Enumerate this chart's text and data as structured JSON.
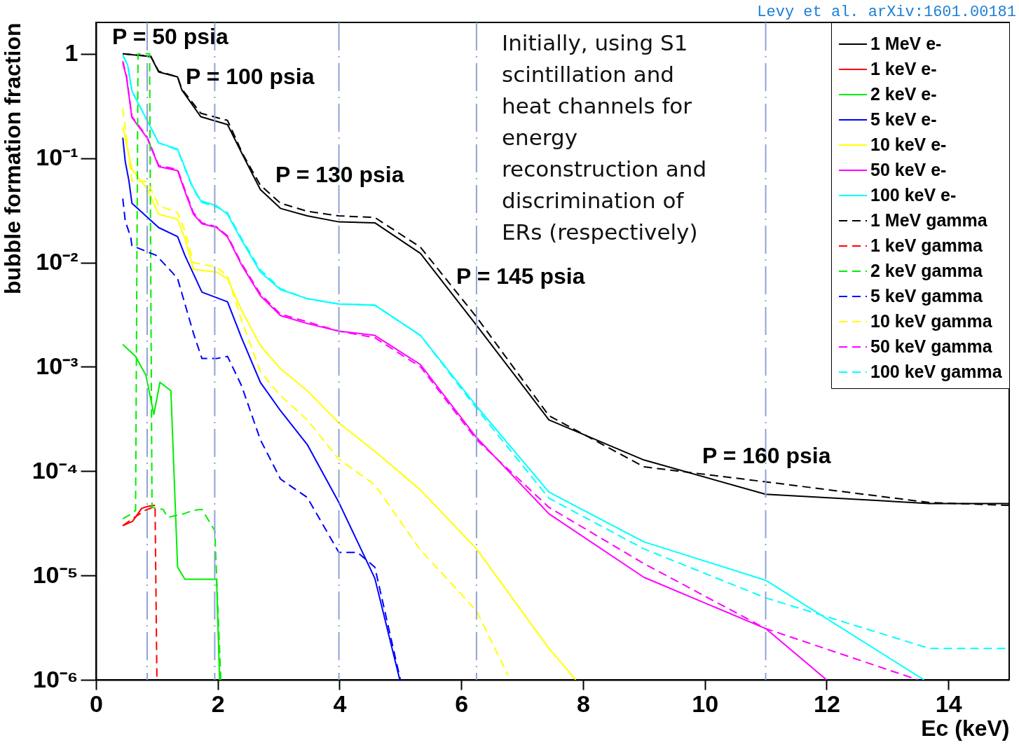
{
  "chart_data": {
    "type": "line",
    "xlabel": "Ec (keV)",
    "ylabel": "bubble formation fraction",
    "log": "y",
    "xlim": [
      0,
      15
    ],
    "xticks": [
      0,
      2,
      4,
      6,
      8,
      10,
      12,
      14
    ],
    "ylim": [
      1e-06,
      2
    ],
    "yticks": [
      {
        "value": 1e-06,
        "label": "10⁻⁶"
      },
      {
        "value": 1e-05,
        "label": "10⁻⁵"
      },
      {
        "value": 0.0001,
        "label": "10⁻⁴"
      },
      {
        "value": 0.001,
        "label": "10⁻³"
      },
      {
        "value": 0.01,
        "label": "10⁻²"
      },
      {
        "value": 0.1,
        "label": "10⁻¹"
      },
      {
        "value": 1,
        "label": "1"
      }
    ],
    "legend": "top right",
    "series": [
      {
        "name": "1 MeV e-",
        "color": "#000000",
        "line_style": "solid",
        "x": [
          0.44,
          0.9,
          1.03,
          1.34,
          1.41,
          1.72,
          2.16,
          2.41,
          2.7,
          3.03,
          3.47,
          3.99,
          4.58,
          5.33,
          6.25,
          7.44,
          9.0,
          11.0,
          13.69,
          15.0
        ],
        "values": [
          1.0,
          0.94,
          0.67,
          0.6,
          0.45,
          0.25,
          0.21,
          0.107,
          0.05,
          0.033,
          0.028,
          0.0245,
          0.024,
          0.0122,
          0.0025,
          0.00031,
          0.000128,
          6e-05,
          4.9e-05,
          4.9e-05
        ]
      },
      {
        "name": "1 keV e-",
        "color": "#ff0000",
        "line_style": "solid",
        "x": [
          0.44,
          0.6,
          0.75,
          0.85,
          0.97
        ],
        "values": [
          3e-05,
          3.3e-05,
          4.4e-05,
          4.6e-05,
          4.7e-05
        ]
      },
      {
        "name": "2 keV e-",
        "color": "#00ee00",
        "line_style": "solid",
        "x": [
          0.44,
          0.65,
          0.82,
          0.95,
          1.05,
          1.23,
          1.34,
          1.46,
          1.59,
          1.74,
          1.98,
          2.03
        ],
        "values": [
          0.00164,
          0.00126,
          0.00083,
          0.00035,
          0.00071,
          0.00059,
          1.2e-05,
          9.2e-06,
          9.2e-06,
          9.2e-06,
          9.2e-06,
          1e-06
        ]
      },
      {
        "name": "5 keV e-",
        "color": "#0000ff",
        "line_style": "solid",
        "x": [
          0.44,
          0.48,
          0.54,
          0.59,
          1.03,
          1.34,
          1.46,
          1.74,
          2.16,
          2.39,
          2.7,
          3.03,
          3.47,
          3.99,
          4.58,
          4.99
        ],
        "values": [
          0.157,
          0.093,
          0.061,
          0.037,
          0.0216,
          0.0177,
          0.0117,
          0.0052,
          0.0042,
          0.0019,
          0.00071,
          0.00038,
          0.00018,
          5e-05,
          9.4e-06,
          1e-06
        ]
      },
      {
        "name": "10 keV e-",
        "color": "#ffff00",
        "line_style": "solid",
        "x": [
          0.44,
          0.59,
          0.84,
          1.03,
          1.34,
          1.46,
          1.6,
          1.98,
          2.16,
          2.39,
          2.7,
          3.03,
          3.47,
          3.99,
          4.58,
          5.33,
          6.25,
          7.44,
          7.88
        ],
        "values": [
          0.2,
          0.078,
          0.051,
          0.029,
          0.026,
          0.017,
          0.0086,
          0.0081,
          0.007,
          0.0035,
          0.0016,
          0.00096,
          0.00059,
          0.00029,
          0.000155,
          6.6e-05,
          1.8e-05,
          2e-06,
          1e-06
        ]
      },
      {
        "name": "50 keV e-",
        "color": "#ff00ff",
        "line_style": "solid",
        "x": [
          0.44,
          0.5,
          0.59,
          0.84,
          1.03,
          1.34,
          1.46,
          1.6,
          1.74,
          1.98,
          2.16,
          2.39,
          2.7,
          3.03,
          3.47,
          3.99,
          4.58,
          5.33,
          6.25,
          7.44,
          9.0,
          11.0,
          12.0
        ],
        "values": [
          0.82,
          0.6,
          0.245,
          0.156,
          0.083,
          0.076,
          0.048,
          0.029,
          0.0235,
          0.0217,
          0.0176,
          0.0095,
          0.0048,
          0.0031,
          0.0026,
          0.0022,
          0.002,
          0.00105,
          0.00021,
          3.9e-05,
          9.6e-06,
          3.1e-06,
          1e-06
        ]
      },
      {
        "name": "100 keV e-",
        "color": "#00ffff",
        "line_style": "solid",
        "x": [
          0.44,
          0.52,
          0.59,
          1.03,
          1.34,
          1.57,
          1.72,
          1.98,
          2.16,
          2.39,
          2.7,
          3.03,
          3.47,
          3.99,
          4.58,
          5.33,
          6.25,
          7.44,
          9.0,
          11.0,
          13.6
        ],
        "values": [
          0.97,
          0.78,
          0.44,
          0.14,
          0.122,
          0.056,
          0.039,
          0.035,
          0.029,
          0.0164,
          0.0081,
          0.0055,
          0.0045,
          0.004,
          0.0039,
          0.002,
          0.00042,
          6.3e-05,
          2.1e-05,
          9e-06,
          1e-06
        ]
      },
      {
        "name": "1 MeV gamma",
        "color": "#000000",
        "line_style": "dashed",
        "x": [
          0.44,
          0.9,
          1.03,
          1.34,
          1.41,
          1.72,
          2.16,
          2.41,
          2.7,
          3.03,
          3.47,
          3.99,
          4.58,
          5.33,
          6.25,
          7.44,
          9.0,
          11.0,
          13.69,
          15.0
        ],
        "values": [
          1.0,
          0.95,
          0.68,
          0.6,
          0.46,
          0.27,
          0.23,
          0.11,
          0.055,
          0.037,
          0.031,
          0.028,
          0.027,
          0.014,
          0.003,
          0.00034,
          0.00011,
          7.9e-05,
          5e-05,
          4.7e-05
        ]
      },
      {
        "name": "1 keV gamma",
        "color": "#ff0000",
        "line_style": "dashed",
        "x": [
          0.44,
          0.6,
          0.8,
          0.97,
          1.0
        ],
        "values": [
          3e-05,
          3.5e-05,
          4.2e-05,
          4.6e-05,
          1e-06
        ]
      },
      {
        "name": "2 keV gamma",
        "color": "#00ee00",
        "line_style": "dashed",
        "x": [
          0.44,
          0.55,
          0.65,
          0.69,
          0.88,
          0.92,
          1.1,
          1.18,
          1.34,
          1.44,
          1.59,
          1.74,
          1.95,
          2.05
        ],
        "values": [
          3.5e-05,
          3.8e-05,
          4.2e-05,
          1.0,
          1.0,
          4.5e-05,
          4.3e-05,
          3.6e-05,
          3.8e-05,
          3.9e-05,
          4.2e-05,
          4.3e-05,
          2.7e-05,
          1e-06
        ]
      },
      {
        "name": "5 keV gamma",
        "color": "#0000ff",
        "line_style": "dashed",
        "x": [
          0.44,
          0.48,
          0.57,
          0.59,
          0.99,
          1.23,
          1.34,
          1.6,
          1.74,
          1.98,
          2.16,
          2.39,
          2.7,
          3.03,
          3.47,
          3.99,
          4.3,
          4.58,
          5.0
        ],
        "values": [
          0.041,
          0.025,
          0.0175,
          0.0145,
          0.0117,
          0.0083,
          0.007,
          0.0021,
          0.0012,
          0.0012,
          0.00126,
          0.00066,
          0.0002,
          8.4e-05,
          5.6e-05,
          1.66e-05,
          1.66e-05,
          1.2e-05,
          1e-06
        ]
      },
      {
        "name": "10 keV gamma",
        "color": "#ffff00",
        "line_style": "dashed",
        "x": [
          0.44,
          0.59,
          0.84,
          1.03,
          1.34,
          1.46,
          1.6,
          1.98,
          2.16,
          2.39,
          2.7,
          3.03,
          3.47,
          3.99,
          4.58,
          5.33,
          6.25,
          6.77
        ],
        "values": [
          0.3,
          0.06,
          0.06,
          0.035,
          0.03,
          0.02,
          0.01,
          0.009,
          0.0075,
          0.0028,
          0.0009,
          0.00053,
          0.00031,
          0.00013,
          7.4e-05,
          1.75e-05,
          4.6e-06,
          1.1e-06
        ]
      },
      {
        "name": "50 keV gamma",
        "color": "#ff00ff",
        "line_style": "dashed",
        "x": [
          0.44,
          0.5,
          0.59,
          0.84,
          1.03,
          1.34,
          1.46,
          1.6,
          1.74,
          1.98,
          2.16,
          2.39,
          2.7,
          3.03,
          3.47,
          3.99,
          4.58,
          5.33,
          6.25,
          7.44,
          9.0,
          11.0,
          13.5
        ],
        "values": [
          0.85,
          0.62,
          0.25,
          0.16,
          0.085,
          0.078,
          0.05,
          0.03,
          0.024,
          0.022,
          0.018,
          0.0098,
          0.005,
          0.0032,
          0.0027,
          0.0022,
          0.0019,
          0.001,
          0.0002,
          4.5e-05,
          1.3e-05,
          3.1e-06,
          1e-06
        ]
      },
      {
        "name": "100 keV gamma",
        "color": "#00ffff",
        "line_style": "dashed",
        "x": [
          0.44,
          0.52,
          0.59,
          1.03,
          1.34,
          1.57,
          1.72,
          1.98,
          2.16,
          2.39,
          2.7,
          3.03,
          3.47,
          3.99,
          4.58,
          5.33,
          6.25,
          7.44,
          9.0,
          11.0,
          13.69,
          15.0
        ],
        "values": [
          0.97,
          0.78,
          0.44,
          0.14,
          0.12,
          0.055,
          0.038,
          0.034,
          0.03,
          0.017,
          0.0085,
          0.0056,
          0.0045,
          0.004,
          0.0039,
          0.002,
          0.0004,
          5.5e-05,
          1.8e-05,
          6.1e-06,
          2e-06,
          2e-06
        ]
      }
    ],
    "ref_lines": [
      {
        "axis": "x",
        "value": 0.84,
        "color": "#8fa3d6",
        "line_style": "dashed"
      },
      {
        "axis": "x",
        "value": 1.95,
        "color": "#8fa3d6",
        "line_style": "dashed"
      },
      {
        "axis": "x",
        "value": 3.99,
        "color": "#8fa3d6",
        "line_style": "dashed"
      },
      {
        "axis": "x",
        "value": 6.25,
        "color": "#8fa3d6",
        "line_style": "dashed"
      },
      {
        "axis": "x",
        "value": 11.0,
        "color": "#8fa3d6",
        "line_style": "dashed"
      }
    ],
    "annotations": [
      "Initially, using S1\nscintillation and\nheat channels for\nenergy\nreconstruction and\ndiscrimination of\nERs (respectively)",
      "Levy et al. arXiv:1601.00181",
      "P = 50 psia",
      "P = 100 psia",
      "P = 130 psia",
      "P = 145 psia",
      "P = 160 psia"
    ]
  }
}
